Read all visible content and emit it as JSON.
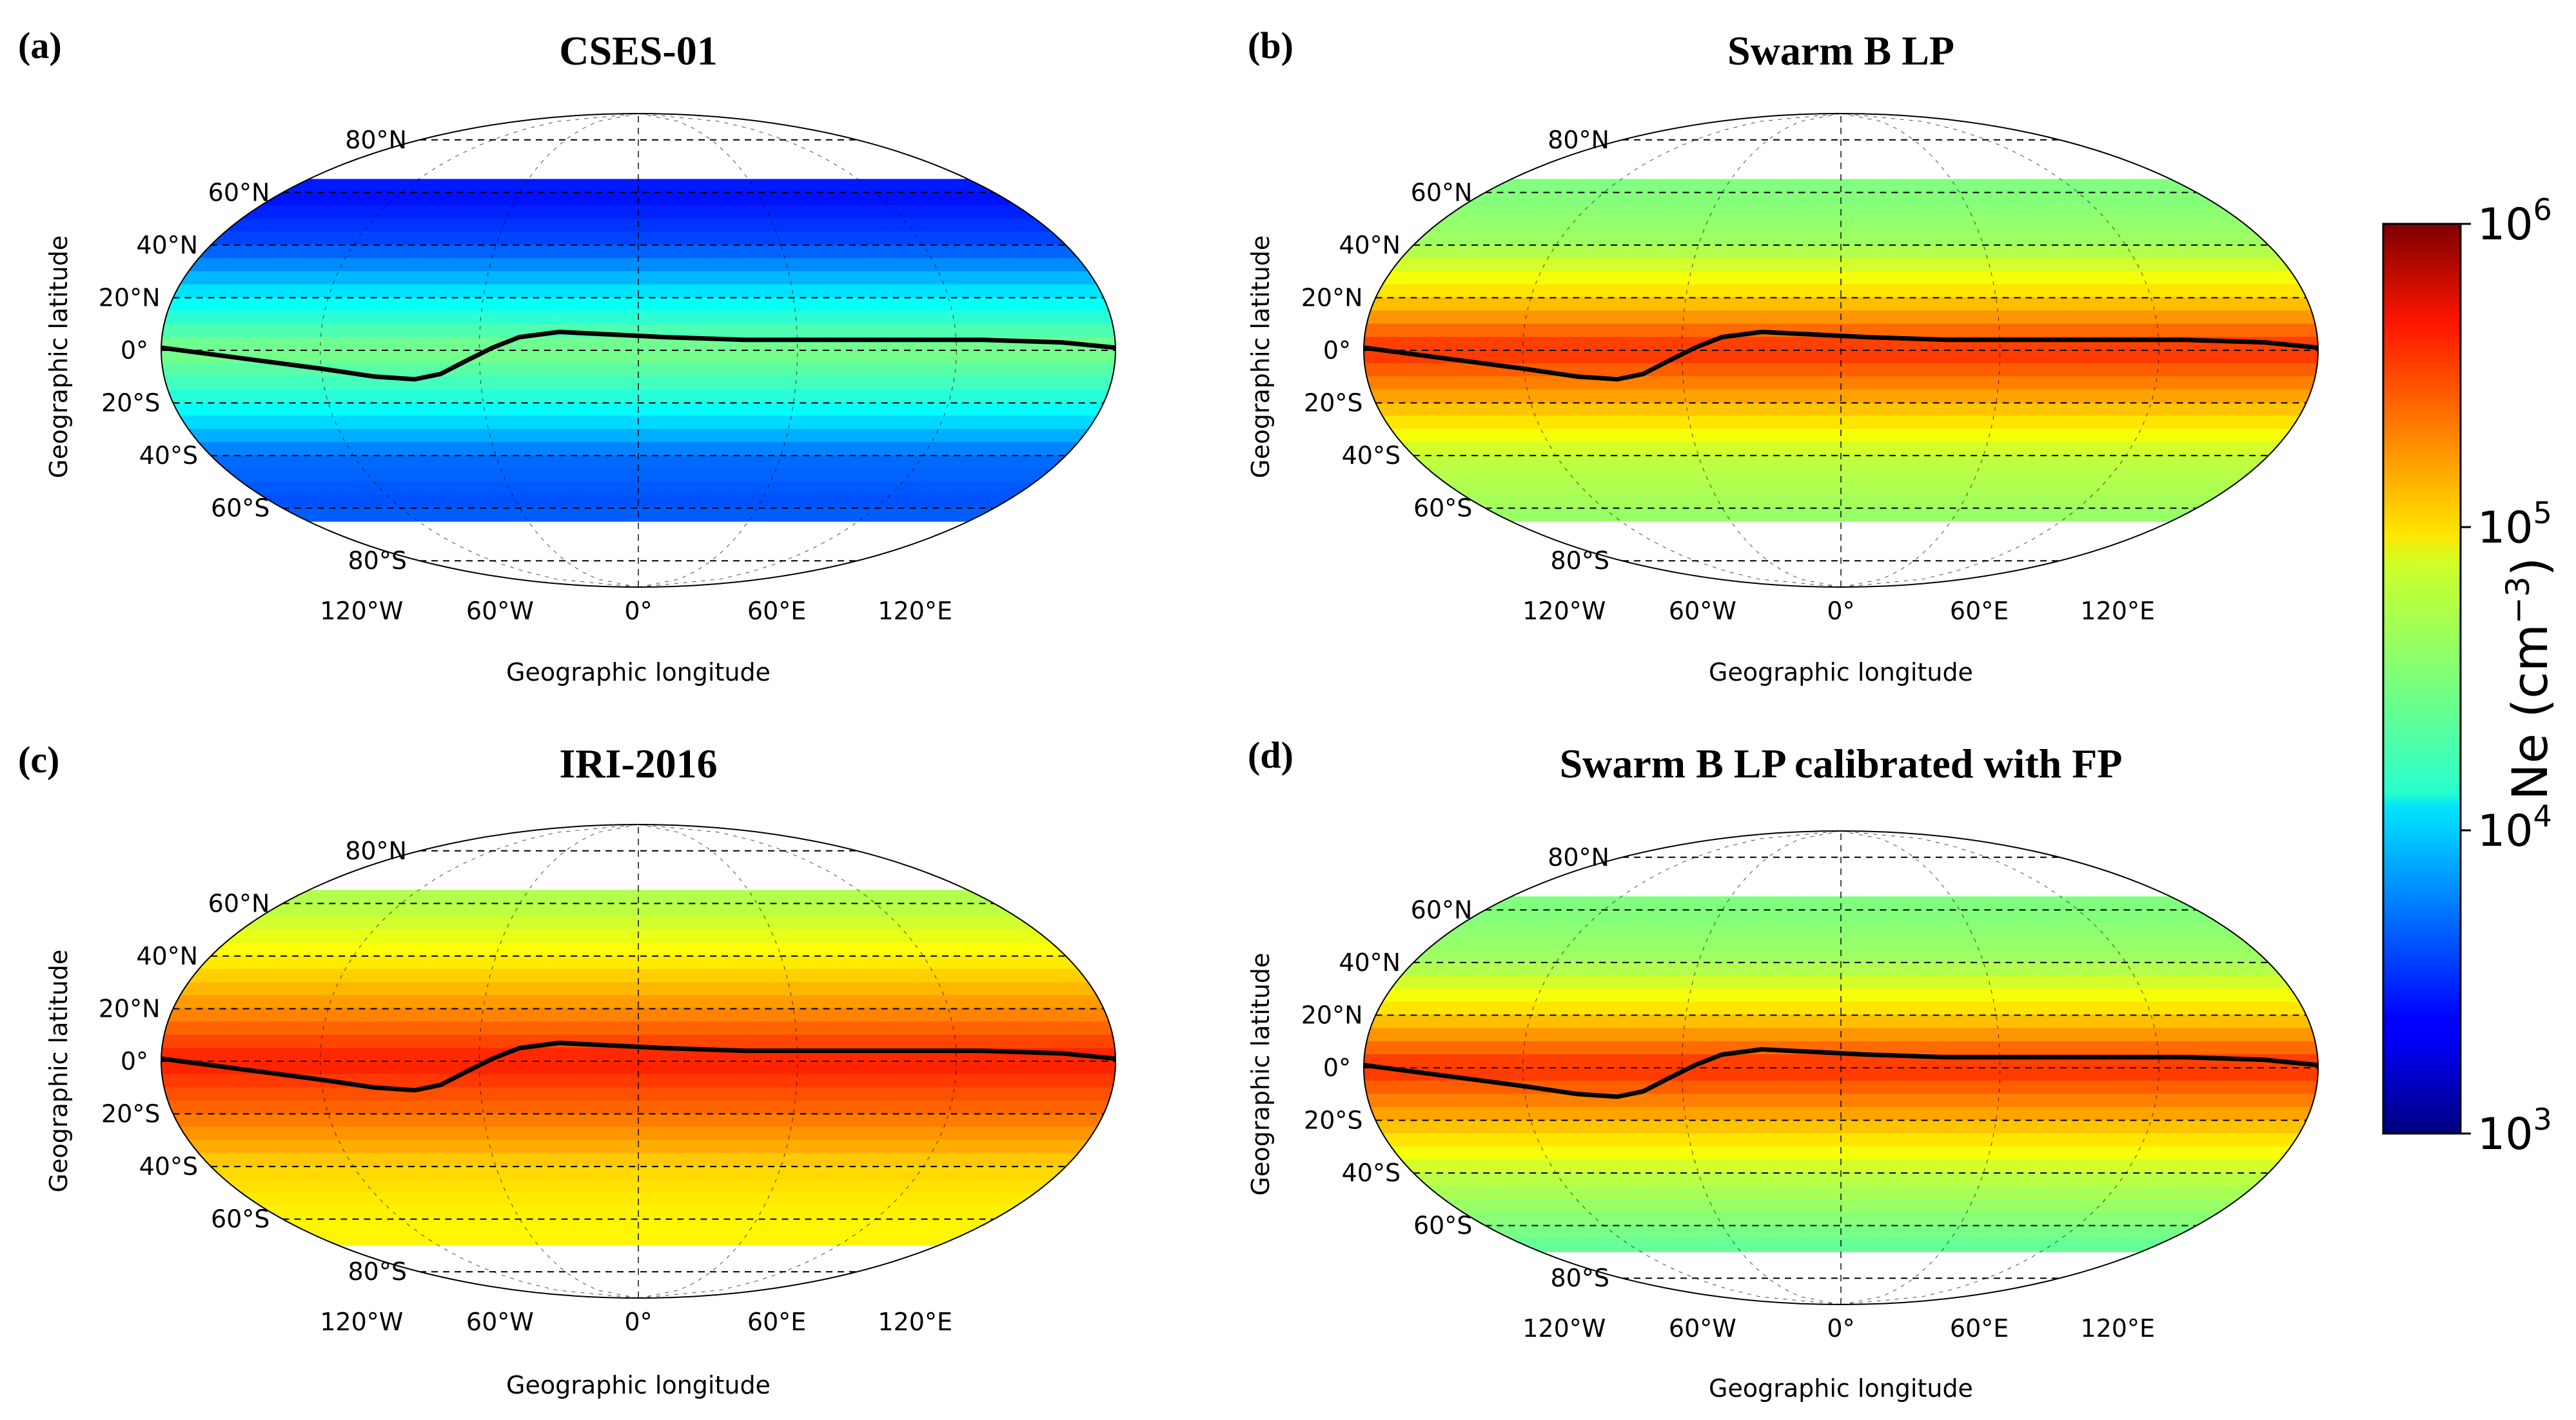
{
  "figure": {
    "colorbar": {
      "label_base": "Ne (cm",
      "label_exp": "−3",
      "label_close": ")",
      "ticks": [
        {
          "base": "10",
          "exp": "6",
          "value": 6
        },
        {
          "base": "10",
          "exp": "5",
          "value": 5
        },
        {
          "base": "10",
          "exp": "4",
          "value": 4
        },
        {
          "base": "10",
          "exp": "3",
          "value": 3
        }
      ],
      "log_min": 3,
      "log_max": 6,
      "colormap": "jet"
    },
    "common": {
      "xlabel": "Geographic longitude",
      "ylabel": "Geographic latitude",
      "lat_ticks": [
        {
          "lat": 80,
          "label": "80°N"
        },
        {
          "lat": 60,
          "label": "60°N"
        },
        {
          "lat": 40,
          "label": "40°N"
        },
        {
          "lat": 20,
          "label": "20°N"
        },
        {
          "lat": 0,
          "label": "0°"
        },
        {
          "lat": -20,
          "label": "20°S"
        },
        {
          "lat": -40,
          "label": "40°S"
        },
        {
          "lat": -60,
          "label": "60°S"
        },
        {
          "lat": -80,
          "label": "80°S"
        }
      ],
      "lon_ticks": [
        {
          "lon": -120,
          "label": "120°W"
        },
        {
          "lon": -60,
          "label": "60°W"
        },
        {
          "lon": 0,
          "label": "0°"
        },
        {
          "lon": 60,
          "label": "60°E"
        },
        {
          "lon": 120,
          "label": "120°E"
        }
      ],
      "dip_equator": [
        [
          -180,
          1
        ],
        [
          -150,
          -3
        ],
        [
          -120,
          -7
        ],
        [
          -100,
          -10
        ],
        [
          -85,
          -11
        ],
        [
          -75,
          -9
        ],
        [
          -65,
          -4
        ],
        [
          -55,
          1
        ],
        [
          -45,
          5
        ],
        [
          -30,
          7
        ],
        [
          -10,
          6
        ],
        [
          10,
          5
        ],
        [
          40,
          4
        ],
        [
          70,
          4
        ],
        [
          100,
          4
        ],
        [
          130,
          4
        ],
        [
          160,
          3
        ],
        [
          180,
          1
        ]
      ]
    },
    "panels": [
      {
        "id": "a",
        "letter": "(a)",
        "title": "CSES-01",
        "lat_range": [
          -65,
          65
        ],
        "levels": [
          [
            -70,
            3.8
          ],
          [
            -60,
            3.6
          ],
          [
            -40,
            3.7
          ],
          [
            -20,
            4.2
          ],
          [
            0,
            4.5
          ],
          [
            20,
            4.1
          ],
          [
            40,
            3.6
          ],
          [
            60,
            3.4
          ],
          [
            70,
            3.6
          ]
        ]
      },
      {
        "id": "b",
        "letter": "(b)",
        "title": "Swarm B LP",
        "lat_range": [
          -65,
          65
        ],
        "levels": [
          [
            -70,
            4.5
          ],
          [
            -60,
            4.6
          ],
          [
            -40,
            4.7
          ],
          [
            -20,
            5.1
          ],
          [
            0,
            5.5
          ],
          [
            20,
            5.0
          ],
          [
            40,
            4.6
          ],
          [
            60,
            4.5
          ],
          [
            70,
            4.5
          ]
        ]
      },
      {
        "id": "c",
        "letter": "(c)",
        "title": "IRI-2016",
        "lat_range": [
          -70,
          65
        ],
        "levels": [
          [
            -70,
            4.9
          ],
          [
            -60,
            4.9
          ],
          [
            -40,
            5.0
          ],
          [
            -20,
            5.3
          ],
          [
            0,
            5.55
          ],
          [
            20,
            5.2
          ],
          [
            40,
            4.9
          ],
          [
            60,
            4.65
          ],
          [
            70,
            4.65
          ]
        ]
      },
      {
        "id": "d",
        "letter": "(d)",
        "title": "Swarm B LP calibrated with FP",
        "lat_range": [
          -70,
          65
        ],
        "levels": [
          [
            -70,
            4.4
          ],
          [
            -60,
            4.5
          ],
          [
            -40,
            4.7
          ],
          [
            -20,
            5.1
          ],
          [
            0,
            5.5
          ],
          [
            20,
            5.0
          ],
          [
            40,
            4.6
          ],
          [
            60,
            4.5
          ],
          [
            70,
            4.5
          ]
        ]
      }
    ]
  }
}
